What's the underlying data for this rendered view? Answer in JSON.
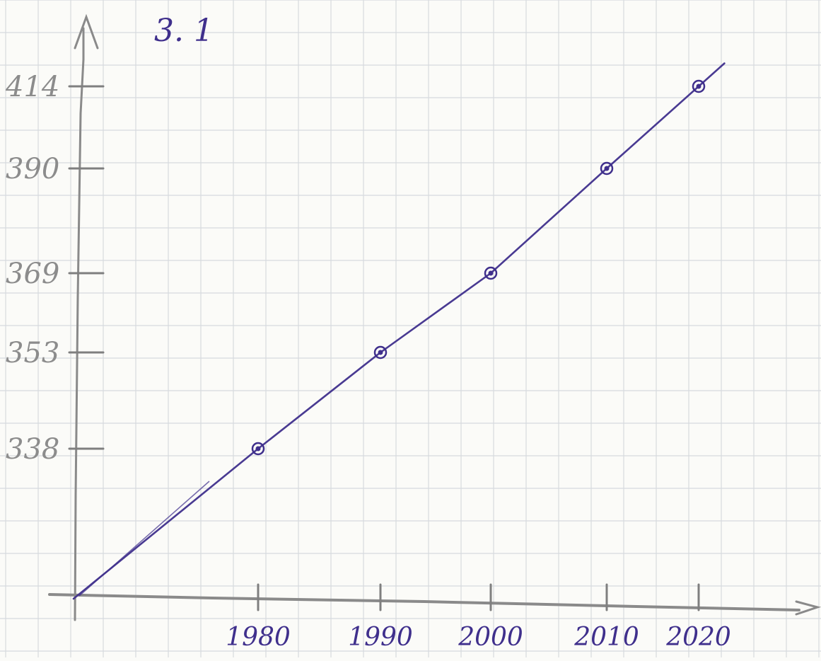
{
  "chart_data": {
    "type": "line",
    "title": "3. 1",
    "xlabel": "",
    "ylabel": "",
    "x_ticks": [
      "1980",
      "1990",
      "2000",
      "2010",
      "2020"
    ],
    "y_ticks": [
      "338",
      "353",
      "369",
      "390",
      "414"
    ],
    "series": [
      {
        "values": [
          {
            "x": 1980,
            "y": 338
          },
          {
            "x": 1990,
            "y": 353
          },
          {
            "x": 2000,
            "y": 369
          },
          {
            "x": 2010,
            "y": 390
          },
          {
            "x": 2020,
            "y": 414
          }
        ]
      }
    ],
    "grid": true,
    "colors": {
      "ink_blue": "#3f2f8c",
      "pencil": "#7f7f7f",
      "grid": "#d7dade",
      "paper": "#fbfbf8"
    }
  }
}
